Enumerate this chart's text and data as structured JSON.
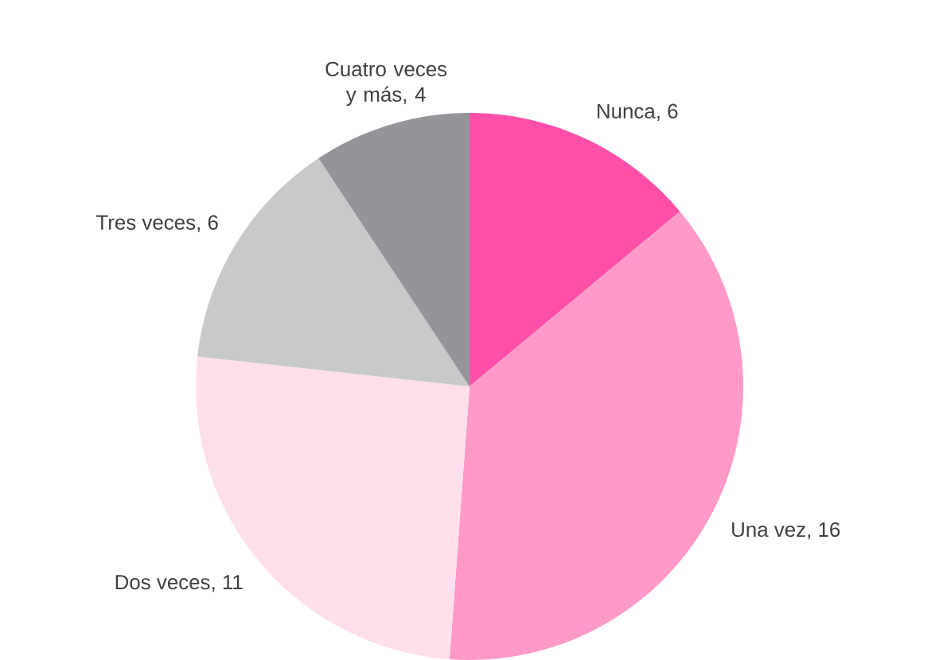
{
  "chart_data": {
    "type": "pie",
    "categories": [
      "Nunca",
      "Una vez",
      "Dos veces",
      "Tres veces",
      "Cuatro veces y más"
    ],
    "values": [
      6,
      16,
      11,
      6,
      4
    ],
    "colors": [
      "#ff4fa8",
      "#ff99c8",
      "#ffdfec",
      "#c8c9cb",
      "#939598"
    ],
    "value_labels": [
      ", 6",
      ", 16",
      ", 11",
      ", 6",
      ", 4"
    ]
  }
}
